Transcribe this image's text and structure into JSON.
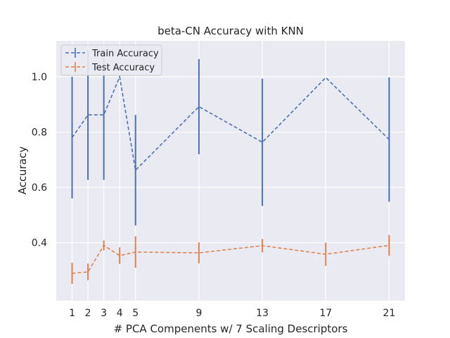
{
  "chart_data": {
    "type": "line",
    "title": "beta-CN Accuracy with KNN",
    "xlabel": "# PCA Compenents w/ 7 Scaling Descriptors",
    "ylabel": "Accuracy",
    "x": [
      1,
      2,
      3,
      4,
      5,
      9,
      13,
      17,
      21
    ],
    "xticks": [
      "1",
      "2",
      "3",
      "4",
      "5",
      "9",
      "13",
      "17",
      "21"
    ],
    "xlim": [
      -0.0,
      22.0
    ],
    "ylim": [
      0.19,
      1.13
    ],
    "yticks": [
      0.4,
      0.6,
      0.8,
      1.0
    ],
    "ytick_labels": [
      "0.4",
      "0.6",
      "0.8",
      "1.0"
    ],
    "grid": true,
    "legend": "top-left",
    "series": [
      {
        "name": "Train Accuracy",
        "color": "#4c72b0",
        "values": [
          0.78,
          0.862,
          0.862,
          1.0,
          0.662,
          0.892,
          0.763,
          0.997,
          0.773
        ],
        "errors": [
          0.22,
          0.235,
          0.235,
          0.0,
          0.2,
          0.172,
          0.23,
          0.0,
          0.225
        ]
      },
      {
        "name": "Test Accuracy",
        "color": "#dd8452",
        "values": [
          0.289,
          0.294,
          0.39,
          0.353,
          0.366,
          0.363,
          0.389,
          0.358,
          0.39
        ],
        "errors": [
          0.038,
          0.03,
          0.018,
          0.03,
          0.057,
          0.038,
          0.024,
          0.042,
          0.038
        ]
      }
    ]
  }
}
